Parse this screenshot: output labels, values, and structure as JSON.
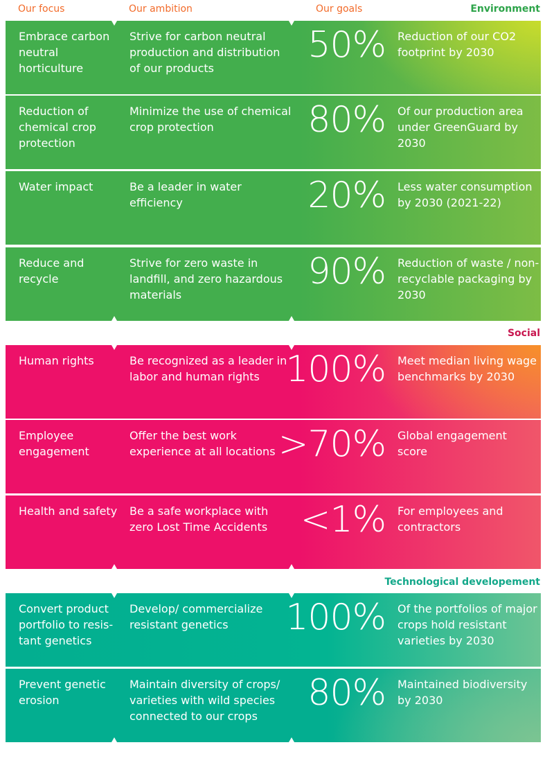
{
  "headers": {
    "focus": "Our focus",
    "ambition": "Our ambition",
    "goals": "Our goals"
  },
  "colors": {
    "header": "#f26b2a",
    "environment": "#43ae4d",
    "social": "#ed1169",
    "technology": "#03b492"
  },
  "sections": [
    {
      "label": "Environment",
      "rows": [
        {
          "focus": "Embrace carbon neutral horticulture",
          "ambition": "Strive for carbon neutral production and distribution of our products",
          "goal": "50%",
          "description": "Reduction of our CO2 footprint by 2030"
        },
        {
          "focus": "Reduction of chemical crop protection",
          "ambition": "Minimize the use of chemical crop protection",
          "goal": "80%",
          "description": "Of our production area under GreenGuard by 2030"
        },
        {
          "focus": "Water impact",
          "ambition": "Be a leader in water efficiency",
          "goal": "20%",
          "description": "Less water consumption by 2030 (2021-22)"
        },
        {
          "focus": "Reduce and recycle",
          "ambition": "Strive for zero waste in landfill, and zero hazardous materials",
          "goal": "90%",
          "description": "Reduction of waste / non-recyclable packaging by 2030"
        }
      ]
    },
    {
      "label": "Social",
      "rows": [
        {
          "focus": "Human rights",
          "ambition": "Be recognized as a leader in labor and human rights",
          "goal": "100%",
          "description": "Meet median living wage benchmarks by 2030"
        },
        {
          "focus": "Employee engagement",
          "ambition": "Offer the best work experience at all locations",
          "goal": ">70%",
          "description": "Global engagement score"
        },
        {
          "focus": "Health and safety",
          "ambition": "Be a safe workplace with zero Lost Time Accidents",
          "goal": "<1%",
          "description": "For employees and contractors"
        }
      ]
    },
    {
      "label": "Technological developement",
      "rows": [
        {
          "focus": "Convert product portfolio to resis-tant genetics",
          "ambition": "Develop/ commercialize resistant genetics",
          "goal": "100%",
          "description": "Of the portfolios of major crops hold resistant varieties by 2030"
        },
        {
          "focus": "Prevent genetic erosion",
          "ambition": "Maintain diversity of crops/ varieties with wild species connected to our crops",
          "goal": "80%",
          "description": "Maintained biodiversity by 2030"
        }
      ]
    }
  ]
}
